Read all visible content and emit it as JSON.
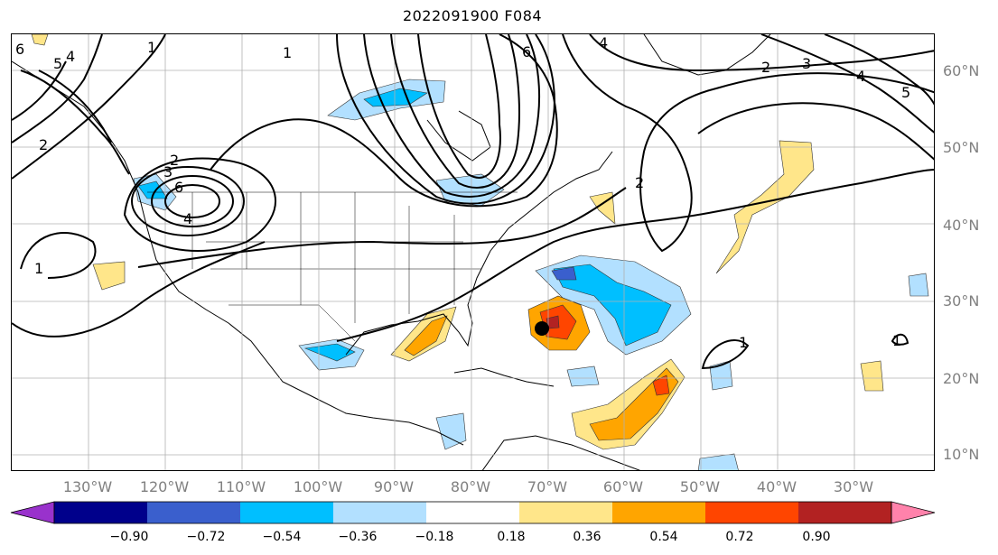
{
  "title": "2022091900 F084",
  "latitude_labels": [
    "60°N",
    "50°N",
    "40°N",
    "30°N",
    "20°N",
    "10°N"
  ],
  "longitude_labels": [
    "130°W",
    "120°W",
    "110°W",
    "100°W",
    "90°W",
    "80°W",
    "70°W",
    "60°W",
    "50°W",
    "40°W",
    "30°W"
  ],
  "colorbar": {
    "ticks": [
      "−0.90",
      "−0.72",
      "−0.54",
      "−0.36",
      "−0.18",
      "0.18",
      "0.36",
      "0.54",
      "0.72",
      "0.90"
    ],
    "colors": [
      "#9932cc",
      "#00008b",
      "#3a5fcd",
      "#00bfff",
      "#b2e0ff",
      "#ffffff",
      "#ffe68a",
      "#ffa500",
      "#ff4500",
      "#b22222",
      "#ff82ab"
    ]
  },
  "contour_labels": [
    "1",
    "2",
    "3",
    "4",
    "5",
    "6"
  ],
  "storm_marker": {
    "name": "storm-center",
    "lat": 26.5,
    "lon": -70.5
  }
}
